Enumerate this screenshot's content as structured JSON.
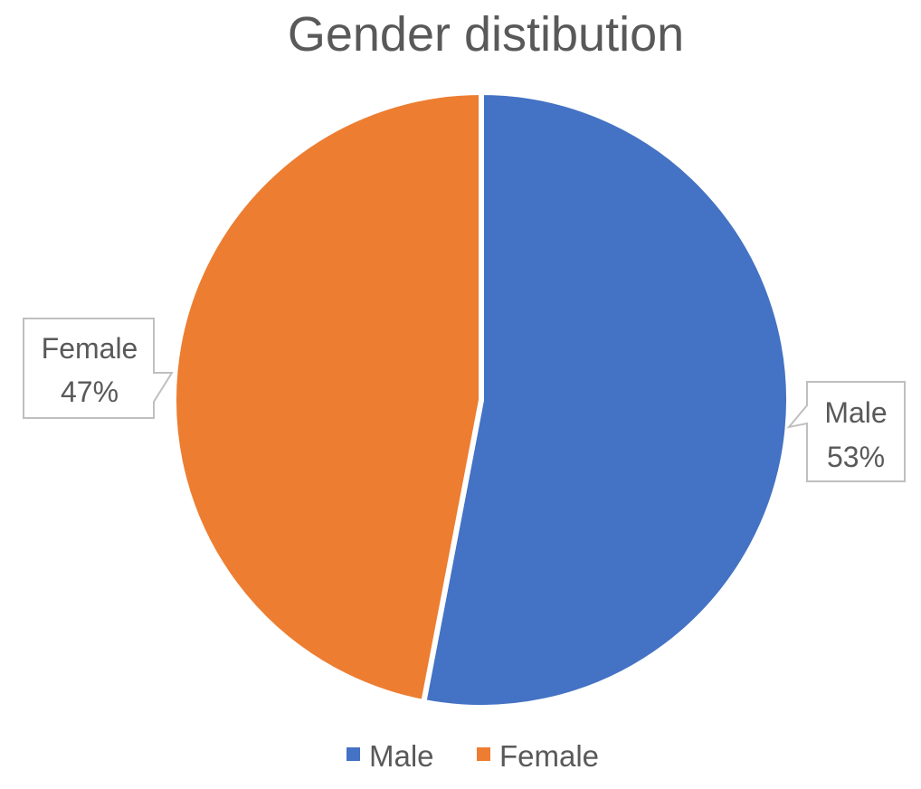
{
  "chart_data": {
    "type": "pie",
    "title": "Gender distibution",
    "categories": [
      "Male",
      "Female"
    ],
    "values": [
      53,
      47
    ],
    "value_unit": "%",
    "colors": [
      "#4472C4",
      "#ED7D31"
    ],
    "start_angle_deg": 0,
    "direction": "clockwise",
    "data_labels": [
      {
        "category": "Male",
        "value": "53%"
      },
      {
        "category": "Female",
        "value": "47%"
      }
    ],
    "legend": {
      "position": "bottom",
      "entries": [
        "Male",
        "Female"
      ]
    }
  }
}
